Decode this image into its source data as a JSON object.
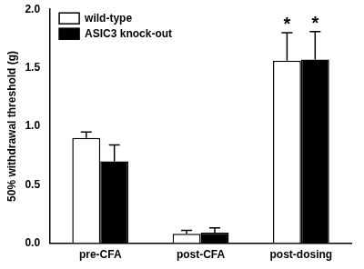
{
  "chart_data": {
    "type": "bar",
    "y_label": "50% withdrawal threshold (g)",
    "categories": [
      "pre-CFA",
      "post-CFA",
      "post-dosing"
    ],
    "series": [
      {
        "name": "wild-type",
        "color": "#ffffff",
        "values": [
          0.9,
          0.08,
          1.56
        ],
        "errors": [
          0.05,
          0.03,
          0.24
        ]
      },
      {
        "name": "ASIC3 knock-out",
        "color": "#000000",
        "values": [
          0.7,
          0.09,
          1.57
        ],
        "errors": [
          0.14,
          0.04,
          0.24
        ]
      }
    ],
    "annotations": [
      {
        "category": "post-dosing",
        "series": "wild-type",
        "text": "*"
      },
      {
        "category": "post-dosing",
        "series": "ASIC3 knock-out",
        "text": "*"
      }
    ],
    "ylim": [
      0,
      2
    ],
    "yticks": [
      {
        "value": 0,
        "label": "0.0"
      },
      0.5,
      {
        "value": 1,
        "label": "1.0"
      },
      1.5,
      {
        "value": 2,
        "label": "2.0"
      }
    ],
    "grid": false,
    "legend": "upper left"
  }
}
